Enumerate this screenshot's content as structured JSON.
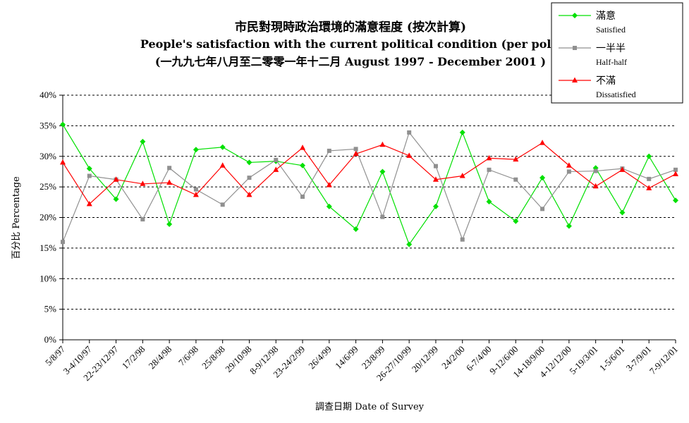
{
  "chart_data": {
    "type": "line",
    "title": "市民對現時政治環境的滿意程度 (按次計算)",
    "subtitle": "People's satisfaction with the current political condition (per poll)",
    "subtitle2": "(一九九七年八月至二零零一年十二月 August 1997 - December 2001 )",
    "xlabel": "調查日期 Date of Survey",
    "ylabel": "百分比 Percentage",
    "ylim": [
      0,
      40
    ],
    "yticks": [
      "0%",
      "5%",
      "10%",
      "15%",
      "20%",
      "25%",
      "30%",
      "35%",
      "40%"
    ],
    "grid": true,
    "legend_position": "top-right",
    "categories": [
      "5/8/97",
      "3-4/10/97",
      "22-23/12/97",
      "17/2/98",
      "28/4/98",
      "7/6/98",
      "25/8/98",
      "29/10/98",
      "8-9/12/98",
      "23-24/2/99",
      "26/4/99",
      "14/6/99",
      "23/8/99",
      "26-27/10/99",
      "20/12/99",
      "24/2/00",
      "6-7/4/00",
      "9-12/6/00",
      "14-18/9/00",
      "4-12/12/00",
      "5-19/3/01",
      "1-5/6/01",
      "3-7/9/01",
      "7-9/12/01"
    ],
    "series": [
      {
        "name": "滿意",
        "name_en": "Satisfied",
        "color": "#00e000",
        "marker": "diamond",
        "values": [
          35.2,
          28.0,
          23.0,
          32.4,
          18.9,
          31.1,
          31.5,
          29.0,
          29.2,
          28.5,
          21.8,
          18.1,
          27.5,
          15.6,
          21.8,
          33.9,
          22.6,
          19.4,
          26.5,
          18.6,
          28.1,
          20.8,
          30.0,
          22.8
        ]
      },
      {
        "name": "一半半",
        "name_en": "Half-half",
        "color": "#909090",
        "marker": "square",
        "values": [
          16.0,
          26.8,
          26.2,
          19.7,
          28.1,
          24.6,
          22.1,
          26.5,
          29.4,
          23.4,
          30.9,
          31.2,
          20.1,
          33.9,
          28.4,
          16.4,
          27.8,
          26.2,
          21.4,
          27.5,
          27.6,
          28.0,
          26.3,
          27.8
        ]
      },
      {
        "name": "不滿",
        "name_en": "Dissatisfied",
        "color": "#ff0000",
        "marker": "triangle",
        "values": [
          29.0,
          22.2,
          26.2,
          25.5,
          25.7,
          23.7,
          28.5,
          23.7,
          27.8,
          31.4,
          25.3,
          30.4,
          31.9,
          30.1,
          26.2,
          26.8,
          29.7,
          29.5,
          32.2,
          28.5,
          25.1,
          27.8,
          24.8,
          27.1
        ]
      }
    ]
  }
}
